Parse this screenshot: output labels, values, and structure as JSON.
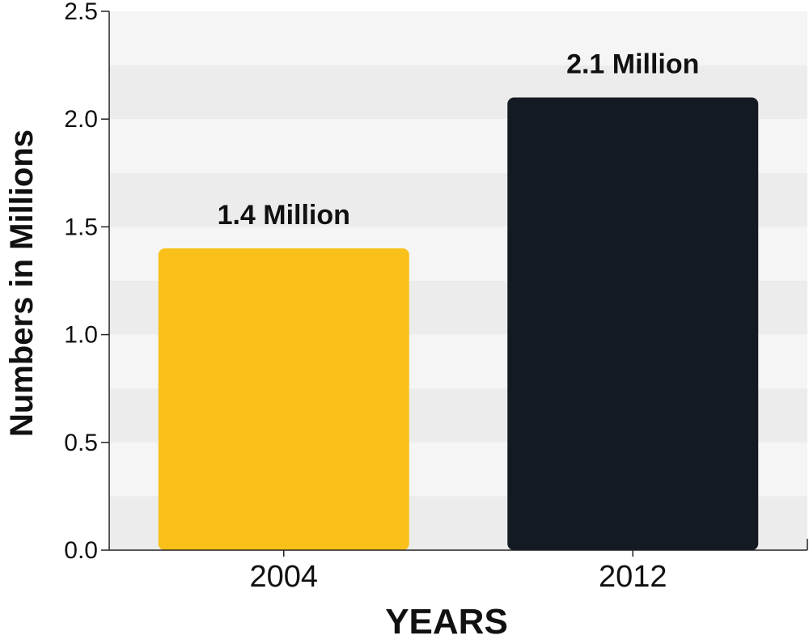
{
  "chart_data": {
    "type": "bar",
    "categories": [
      "2004",
      "2012"
    ],
    "values": [
      1.4,
      2.1
    ],
    "data_labels": [
      "1.4 Million",
      "2.1 Million"
    ],
    "bar_colors": [
      "#f8c018",
      "#141a21"
    ],
    "xlabel": "YEARS",
    "ylabel": "Numbers in Millions",
    "ylim": [
      0,
      2.5
    ],
    "yticks": [
      "0.0",
      "0.5",
      "1.0",
      "1.5",
      "2.0",
      "2.5"
    ],
    "grid": "alternating horizontal bands",
    "band_colors": [
      "#f4f5f4",
      "#ececec"
    ]
  }
}
